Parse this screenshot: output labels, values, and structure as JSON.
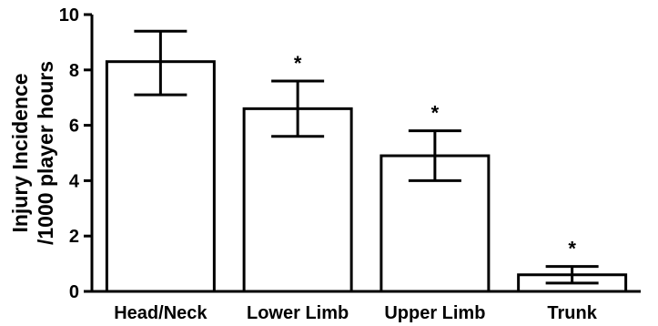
{
  "chart_data": {
    "type": "bar",
    "title": "",
    "xlabel": "",
    "ylabel_lines": [
      "Injury Incidence",
      "/1000 player hours"
    ],
    "categories": [
      "Head/Neck",
      "Lower Limb",
      "Upper Limb",
      "Trunk"
    ],
    "values": [
      8.3,
      6.6,
      4.9,
      0.6
    ],
    "error_upper": [
      9.4,
      7.6,
      5.8,
      0.9
    ],
    "error_lower": [
      7.1,
      5.6,
      4.0,
      0.3
    ],
    "significance_markers": [
      "",
      "*",
      "*",
      "*"
    ],
    "ylim": [
      0,
      10
    ],
    "yticks": [
      0,
      2,
      4,
      6,
      8,
      10
    ],
    "grid": false,
    "legend": "none",
    "colors": {
      "bar_fill": "#ffffff",
      "bar_stroke": "#000000",
      "axis": "#000000"
    }
  }
}
